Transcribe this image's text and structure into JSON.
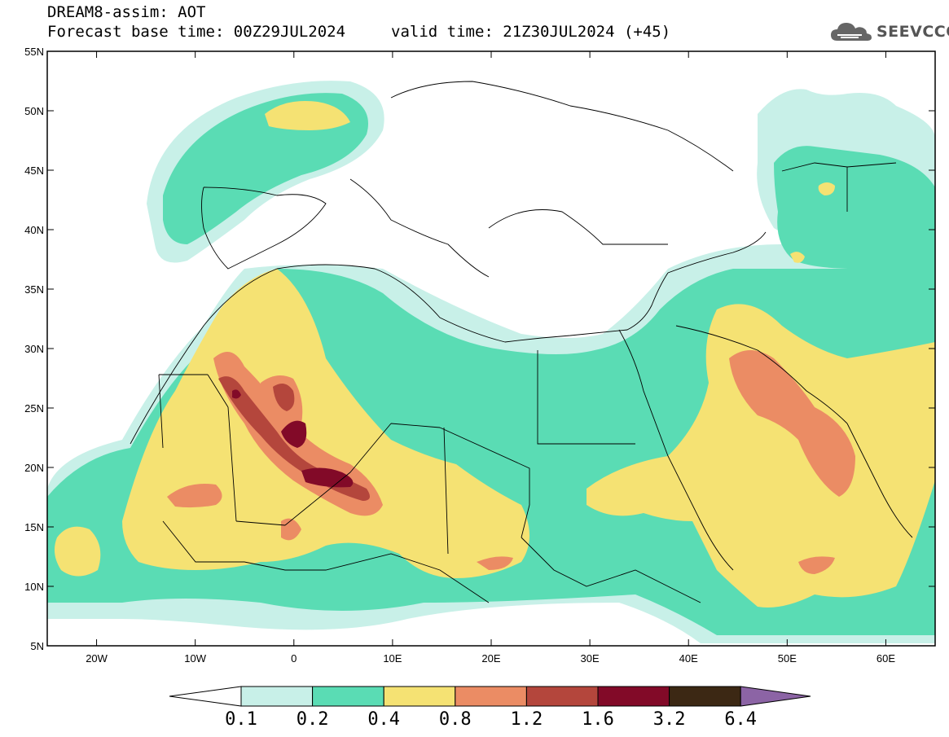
{
  "header": {
    "title": "DREAM8-assim: AOT",
    "base_time": "Forecast base time: 00Z29JUL2024",
    "valid_time": "valid time: 21Z30JUL2024 (+45)"
  },
  "logo": {
    "text": "SEEVCCC",
    "icon": "cloud-icon"
  },
  "map": {
    "lon_range": [
      -25,
      65
    ],
    "lat_range": [
      5,
      55
    ],
    "lat_ticks": [
      "5N",
      "10N",
      "15N",
      "20N",
      "25N",
      "30N",
      "35N",
      "40N",
      "45N",
      "50N",
      "55N"
    ],
    "lon_ticks": [
      "20W",
      "10W",
      "0",
      "10E",
      "20E",
      "30E",
      "40E",
      "50E",
      "60E"
    ],
    "ocean_color": "#ffffff",
    "border_color": "#000000"
  },
  "legend": {
    "levels": [
      "0.1",
      "0.2",
      "0.4",
      "0.8",
      "1.2",
      "1.6",
      "3.2",
      "6.4"
    ],
    "colors": [
      "#c8f0e8",
      "#5adcb4",
      "#f5e273",
      "#eb8c64",
      "#b4463c",
      "#820a28",
      "#3c2814",
      "#8c64a5"
    ],
    "under_color": "#ffffff",
    "over_color": "#8c64a5"
  }
}
